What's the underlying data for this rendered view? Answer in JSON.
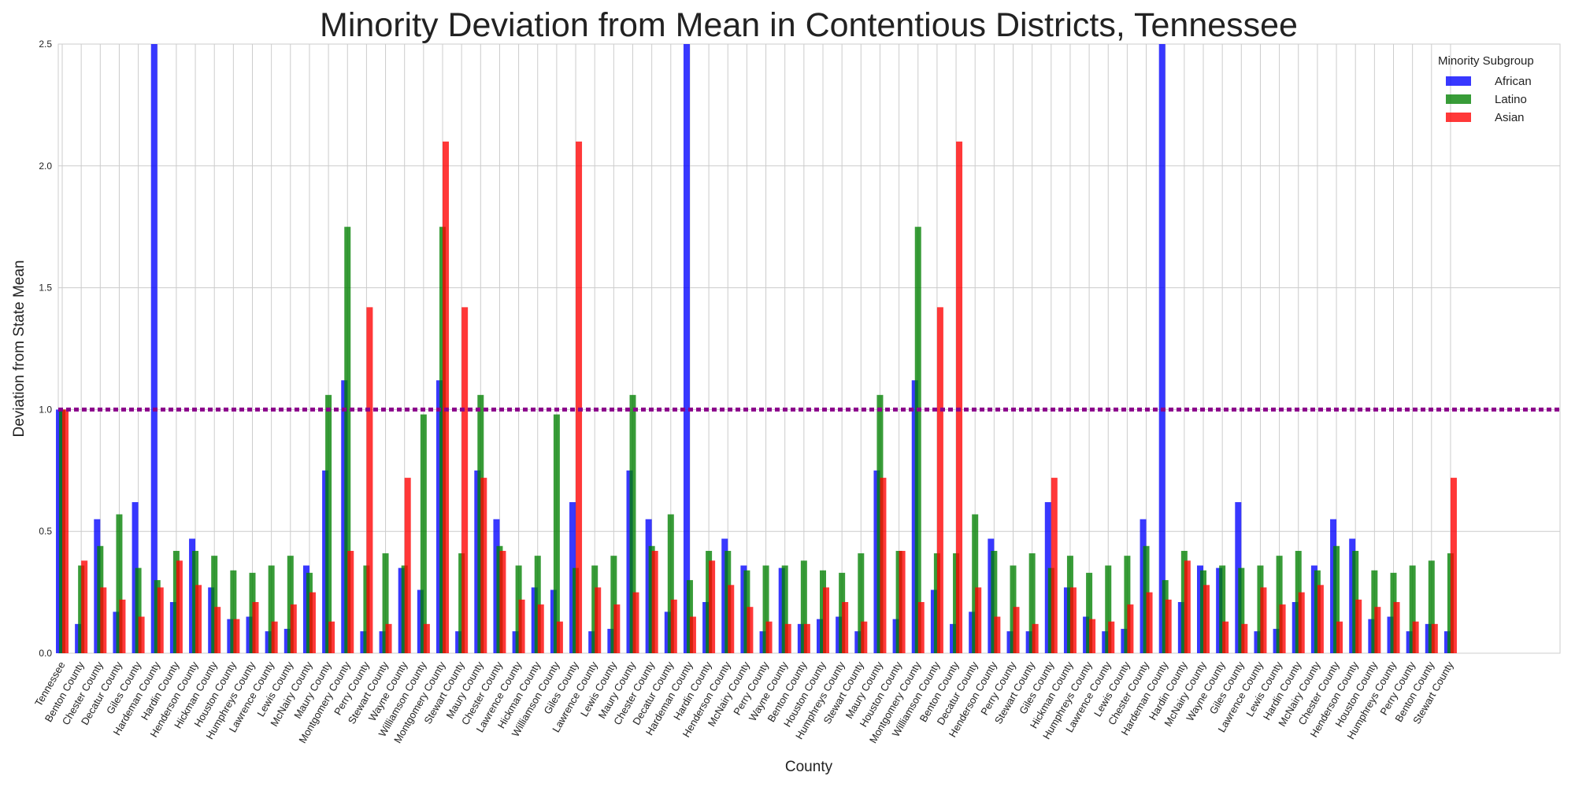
{
  "chart_data": {
    "type": "bar",
    "title": "Minority Deviation from Mean in Contentious Districts, Tennessee",
    "x_label": "County",
    "y_label": "Deviation from State Mean",
    "legend_title": "Minority Subgroup",
    "legend_position": "upper right",
    "grid": true,
    "ylim": [
      0,
      2.5
    ],
    "yticks": [
      {
        "value": 0,
        "label": "0.0"
      },
      {
        "value": 0.5,
        "label": "0.5"
      },
      {
        "value": 1,
        "label": "1.0"
      },
      {
        "value": 1.5,
        "label": "1.5"
      },
      {
        "value": 2,
        "label": "2.0"
      },
      2.5
    ],
    "hline": {
      "value": 1,
      "color": "#8b008b"
    },
    "categories": [
      "Tennessee",
      "Benton County",
      "Chester County",
      "Decatur County",
      "Giles County",
      "Hardeman County",
      "Hardin County",
      "Henderson County",
      "Hickman County",
      "Houston County",
      "Humphreys County",
      "Lawrence County",
      "Lewis County",
      "McNairy County",
      "Maury County",
      "Montgomery County",
      "Perry County",
      "Stewart County",
      "Wayne County",
      "Williamson County",
      "Montgomery County",
      "Stewart County",
      "Maury County",
      "Chester County",
      "Lawrence County",
      "Hickman County",
      "Williamson County",
      "Giles County",
      "Lawrence County",
      "Lewis County",
      "Maury County",
      "Chester County",
      "Decatur County",
      "Hardeman County",
      "Hardin County",
      "Henderson County",
      "McNairy County",
      "Perry County",
      "Wayne County",
      "Benton County",
      "Houston County",
      "Humphreys County",
      "Stewart County",
      "Maury County",
      "Houston County",
      "Montgomery County",
      "Williamson County",
      "Benton County",
      "Decatur County",
      "Henderson County",
      "Perry County",
      "Stewart County",
      "Giles County",
      "Hickman County",
      "Humphreys County",
      "Lawrence County",
      "Lewis County",
      "Chester County",
      "Hardeman County",
      "Hardin County",
      "McNairy County",
      "Wayne County",
      "Giles County",
      "Lawrence County",
      "Lewis County",
      "Hardin County",
      "McNairy County",
      "Chester County",
      "Henderson County",
      "Houston County",
      "Humphreys County",
      "Perry County",
      "Benton County",
      "Stewart County"
    ],
    "series": [
      {
        "name": "African",
        "color": "#0000ff",
        "values": [
          1.0,
          0.12,
          0.55,
          0.17,
          0.62,
          2.5,
          0.21,
          0.47,
          0.27,
          0.14,
          0.15,
          0.09,
          0.1,
          0.36,
          0.75,
          1.12,
          0.09,
          0.09,
          0.35,
          0.26,
          1.12,
          0.09,
          0.75,
          0.55,
          0.09,
          0.27,
          0.26,
          0.62,
          0.09,
          0.1,
          0.75,
          0.55,
          0.17,
          2.5,
          0.21,
          0.47,
          0.36,
          0.09,
          0.35,
          0.12,
          0.14,
          0.15,
          0.09,
          0.75,
          0.14,
          1.12,
          0.26,
          0.12,
          0.17,
          0.47,
          0.09,
          0.09,
          0.62,
          0.27,
          0.15,
          0.09,
          0.1,
          0.55,
          2.5,
          0.21,
          0.36,
          0.35,
          0.62,
          0.09,
          0.1,
          0.21,
          0.36,
          0.55,
          0.47,
          0.14,
          0.15,
          0.09,
          0.12,
          0.09
        ]
      },
      {
        "name": "Latino",
        "color": "#008000",
        "values": [
          1.0,
          0.36,
          0.44,
          0.57,
          0.35,
          0.3,
          0.42,
          0.42,
          0.4,
          0.34,
          0.33,
          0.36,
          0.4,
          0.33,
          1.06,
          1.75,
          0.36,
          0.41,
          0.36,
          0.98,
          1.75,
          0.41,
          1.06,
          0.44,
          0.36,
          0.4,
          0.98,
          0.35,
          0.36,
          0.4,
          1.06,
          0.44,
          0.57,
          0.3,
          0.42,
          0.42,
          0.34,
          0.36,
          0.36,
          0.38,
          0.34,
          0.33,
          0.41,
          1.06,
          0.42,
          1.75,
          0.41,
          0.41,
          0.57,
          0.42,
          0.36,
          0.41,
          0.35,
          0.4,
          0.33,
          0.36,
          0.4,
          0.44,
          0.3,
          0.42,
          0.34,
          0.36,
          0.35,
          0.36,
          0.4,
          0.42,
          0.34,
          0.44,
          0.42,
          0.34,
          0.33,
          0.36,
          0.38,
          0.41
        ]
      },
      {
        "name": "Asian",
        "color": "#ff0000",
        "values": [
          1.0,
          0.38,
          0.27,
          0.22,
          0.15,
          0.27,
          0.38,
          0.28,
          0.19,
          0.14,
          0.21,
          0.13,
          0.2,
          0.25,
          0.13,
          0.42,
          1.42,
          0.12,
          0.72,
          0.12,
          2.1,
          1.42,
          0.72,
          0.42,
          0.22,
          0.2,
          0.13,
          2.1,
          0.27,
          0.2,
          0.25,
          0.42,
          0.22,
          0.15,
          0.38,
          0.28,
          0.19,
          0.13,
          0.12,
          0.12,
          0.27,
          0.21,
          0.13,
          0.72,
          0.42,
          0.21,
          1.42,
          2.1,
          0.27,
          0.15,
          0.19,
          0.12,
          0.72,
          0.27,
          0.14,
          0.13,
          0.2,
          0.25,
          0.22,
          0.38,
          0.28,
          0.13,
          0.12,
          0.27,
          0.2,
          0.25,
          0.28,
          0.13,
          0.22,
          0.19,
          0.21,
          0.13,
          0.12,
          0.72
        ]
      }
    ]
  }
}
